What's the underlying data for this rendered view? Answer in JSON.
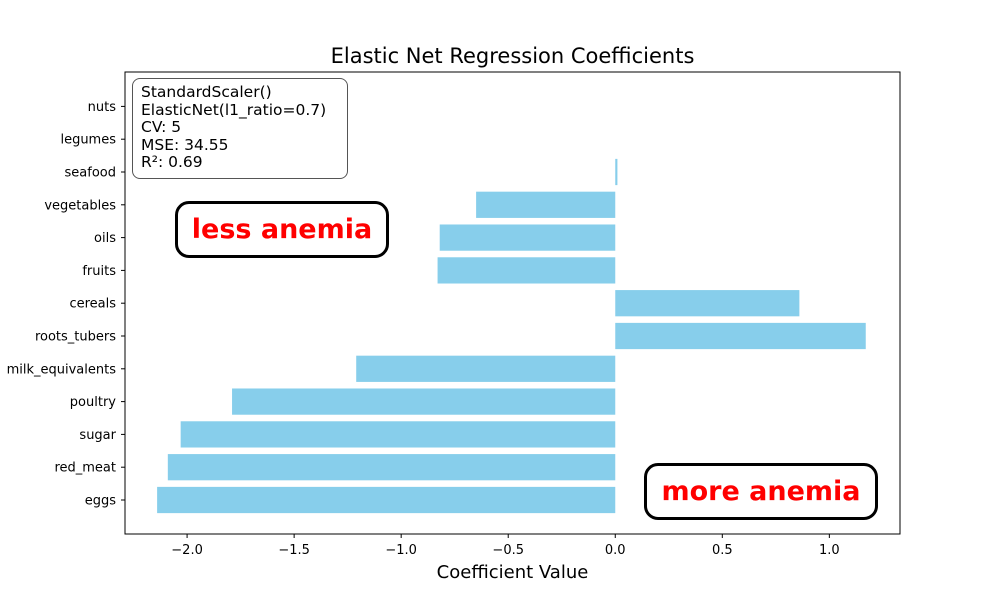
{
  "chart_data": {
    "type": "bar",
    "orientation": "horizontal",
    "title": "Elastic Net Regression Coefficients",
    "xlabel": "Coefficient Value",
    "ylabel": "",
    "categories": [
      "eggs",
      "red_meat",
      "sugar",
      "poultry",
      "milk_equivalents",
      "roots_tubers",
      "cereals",
      "fruits",
      "oils",
      "vegetables",
      "seafood",
      "legumes",
      "nuts"
    ],
    "values": [
      -2.14,
      -2.09,
      -2.03,
      -1.79,
      -1.21,
      1.17,
      0.86,
      -0.83,
      -0.82,
      -0.65,
      0.01,
      0.0,
      0.0
    ],
    "xlim": [
      -2.29,
      1.33
    ],
    "xticks": [
      -2.0,
      -1.5,
      -1.0,
      -0.5,
      0.0,
      0.5,
      1.0
    ],
    "xtick_labels": [
      "−2.0",
      "−1.5",
      "−1.0",
      "−0.5",
      "0.0",
      "0.5",
      "1.0"
    ],
    "bar_color": "#87ceeb",
    "grid": false,
    "legend": "none"
  },
  "info_box": {
    "lines": [
      "StandardScaler()",
      "ElasticNet(l1_ratio=0.7)",
      "CV: 5",
      "MSE: 34.55",
      "R²: 0.69"
    ]
  },
  "annotations": {
    "less_label": "less anemia",
    "more_label": "more anemia",
    "text_color": "#ff0000"
  }
}
